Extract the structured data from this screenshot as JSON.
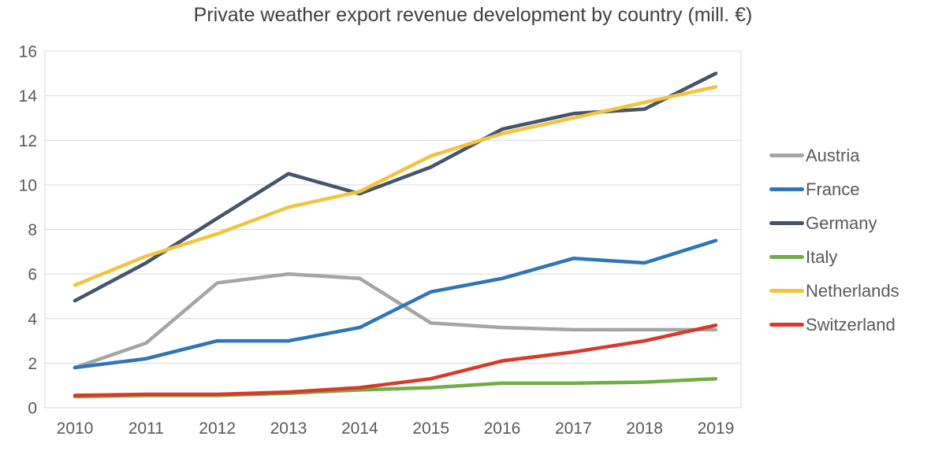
{
  "chart_data": {
    "type": "line",
    "title": "Private weather export revenue development by country (mill. €)",
    "categories": [
      "2010",
      "2011",
      "2012",
      "2013",
      "2014",
      "2015",
      "2016",
      "2017",
      "2018",
      "2019"
    ],
    "series": [
      {
        "name": "Austria",
        "color": "#a5a5a5",
        "values": [
          1.8,
          2.9,
          5.6,
          6.0,
          5.8,
          3.8,
          3.6,
          3.5,
          3.5,
          3.5
        ]
      },
      {
        "name": "France",
        "color": "#2e75b6",
        "values": [
          1.8,
          2.2,
          3.0,
          3.0,
          3.6,
          5.2,
          5.8,
          6.7,
          6.5,
          7.5
        ]
      },
      {
        "name": "Germany",
        "color": "#44546a",
        "values": [
          4.8,
          6.5,
          8.5,
          10.5,
          9.6,
          10.8,
          12.5,
          13.2,
          13.4,
          15.0
        ]
      },
      {
        "name": "Italy",
        "color": "#70ad47",
        "values": [
          0.5,
          0.55,
          0.55,
          0.65,
          0.8,
          0.9,
          1.1,
          1.1,
          1.15,
          1.3
        ]
      },
      {
        "name": "Netherlands",
        "color": "#f2c33c",
        "values": [
          5.5,
          6.8,
          7.8,
          9.0,
          9.7,
          11.3,
          12.3,
          13.0,
          13.7,
          14.4
        ]
      },
      {
        "name": "Switzerland",
        "color": "#d8392c",
        "values": [
          0.55,
          0.6,
          0.6,
          0.7,
          0.9,
          1.3,
          2.1,
          2.5,
          3.0,
          3.7
        ]
      }
    ],
    "xlabel": "",
    "ylabel": "",
    "ylim": [
      0,
      16
    ],
    "y_ticks": [
      0,
      2,
      4,
      6,
      8,
      10,
      12,
      14,
      16
    ],
    "grid": "horizontal",
    "legend_position": "right"
  },
  "colors": {
    "background": "#ffffff",
    "gridline": "#d9d9d9",
    "title_text": "#404040",
    "axis_text": "#595959",
    "legend_text": "#595959"
  }
}
